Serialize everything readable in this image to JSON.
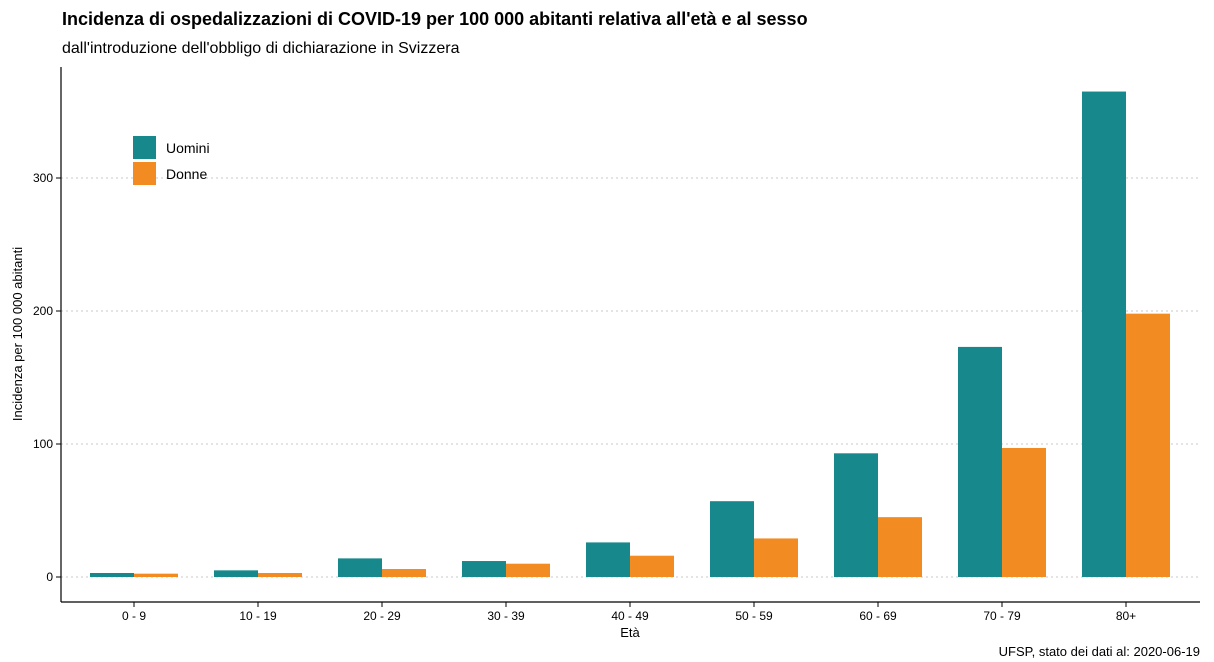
{
  "chart_data": {
    "type": "bar",
    "title": "Incidenza di ospedalizzazioni di COVID-19 per 100 000 abitanti relativa all'età e al sesso",
    "subtitle": "dall'introduzione dell'obbligo di dichiarazione in Svizzera",
    "xlabel": "Età",
    "ylabel": "Incidenza per 100 000 abitanti",
    "caption": "UFSP, stato dei dati al: 2020-06-19",
    "categories": [
      "0 - 9",
      "10 - 19",
      "20 - 29",
      "30 - 39",
      "40 - 49",
      "50 - 59",
      "60 - 69",
      "70 - 79",
      "80+"
    ],
    "series": [
      {
        "name": "Uomini",
        "color": "#17888b",
        "values": [
          3,
          5,
          14,
          12,
          26,
          57,
          93,
          173,
          365
        ]
      },
      {
        "name": "Donne",
        "color": "#f28b22",
        "values": [
          2.5,
          3,
          6,
          10,
          16,
          29,
          45,
          97,
          198
        ]
      }
    ],
    "ylim": [
      0,
      380
    ],
    "yticks": [
      0,
      100,
      200,
      300
    ],
    "grid": "horizontal-dotted",
    "legend_position": "top-left"
  }
}
